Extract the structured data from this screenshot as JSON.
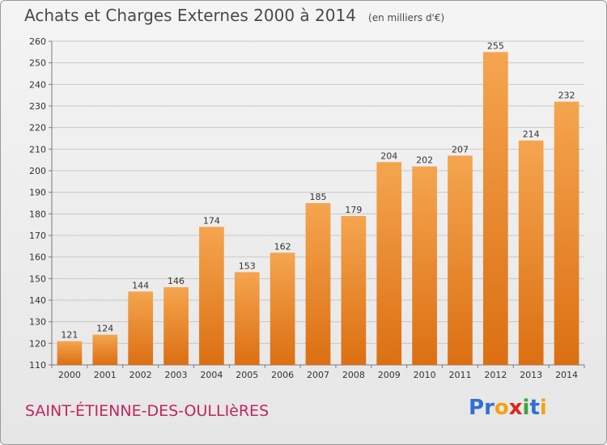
{
  "header": {
    "title": "Achats et Charges Externes 2000 à 2014",
    "subtitle": "(en milliers d'€)"
  },
  "footer": {
    "commune": "SAINT-ÉTIENNE-DES-OULLIèRES",
    "brand": "Proxiti",
    "brand_letters": [
      "P",
      "r",
      "o",
      "x",
      "i",
      "t",
      "i"
    ],
    "brand_colors": [
      "#2f6fd6",
      "#2f6fd6",
      "#f2a313",
      "#d9261c",
      "#3aa63a",
      "#2f6fd6",
      "#f2a313"
    ]
  },
  "colors": {
    "bar_top": "#f5a54f",
    "bar_bottom": "#dc6f12",
    "grid": "#c8c8c8",
    "axis": "#7a7a7a",
    "text": "#333333"
  },
  "chart_data": {
    "type": "bar",
    "title": "Achats et Charges Externes 2000 à 2014",
    "subtitle": "(en milliers d'€)",
    "categories": [
      "2000",
      "2001",
      "2002",
      "2003",
      "2004",
      "2005",
      "2006",
      "2007",
      "2008",
      "2009",
      "2010",
      "2011",
      "2012",
      "2013",
      "2014"
    ],
    "values": [
      121,
      124,
      144,
      146,
      174,
      153,
      162,
      185,
      179,
      204,
      202,
      207,
      255,
      214,
      232
    ],
    "ylim": [
      110,
      260
    ],
    "yticks": [
      110,
      120,
      130,
      140,
      150,
      160,
      170,
      180,
      190,
      200,
      210,
      220,
      230,
      240,
      250,
      260
    ],
    "grid": true,
    "data_labels": true,
    "xlabel": "",
    "ylabel": ""
  }
}
